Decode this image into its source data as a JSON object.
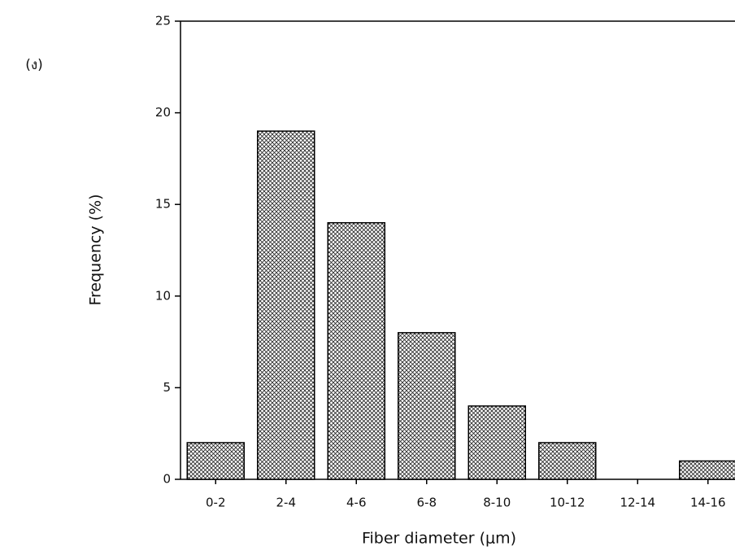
{
  "chart_data": {
    "type": "bar",
    "annotation": "(ง)",
    "x_label": "Fiber diameter (μm)",
    "y_label": "Frequency (%)",
    "categories": [
      "0-2",
      "2-4",
      "4-6",
      "6-8",
      "8-10",
      "10-12",
      "12-14",
      "14-16"
    ],
    "values": [
      2,
      19,
      14,
      8,
      4,
      2,
      0,
      1
    ],
    "color": "#000000",
    "ylim": [
      0,
      25
    ],
    "yticks": [
      0,
      5,
      10,
      15,
      20,
      25
    ]
  }
}
